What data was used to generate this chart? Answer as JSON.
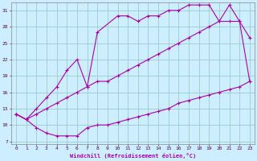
{
  "xlabel": "Windchill (Refroidissement éolien,°C)",
  "bg_color": "#cceeff",
  "line_color": "#aa00aa",
  "grid_color": "#99cccc",
  "xlim": [
    -0.5,
    23.5
  ],
  "ylim": [
    6.5,
    32.5
  ],
  "xticks": [
    0,
    1,
    2,
    3,
    4,
    5,
    6,
    7,
    8,
    9,
    10,
    11,
    12,
    13,
    14,
    15,
    16,
    17,
    18,
    19,
    20,
    21,
    22,
    23
  ],
  "yticks": [
    7,
    10,
    13,
    16,
    19,
    22,
    25,
    28,
    31
  ],
  "curve_upper": {
    "x": [
      0,
      1,
      2,
      3,
      4,
      5,
      6,
      7,
      8,
      10,
      11,
      12,
      13,
      14,
      15,
      16,
      17,
      18,
      19,
      20,
      21,
      22,
      23
    ],
    "y": [
      12,
      11,
      13,
      15,
      17,
      20,
      22,
      17,
      27,
      30,
      30,
      29,
      30,
      30,
      31,
      31,
      32,
      32,
      32,
      29,
      32,
      29,
      26
    ]
  },
  "curve_mid": {
    "x": [
      0,
      1,
      2,
      3,
      4,
      5,
      6,
      7,
      8,
      9,
      10,
      11,
      12,
      13,
      14,
      15,
      16,
      17,
      18,
      19,
      20,
      21,
      22,
      23
    ],
    "y": [
      12,
      11,
      12,
      13,
      14,
      15,
      16,
      17,
      18,
      18,
      19,
      20,
      21,
      22,
      23,
      24,
      25,
      26,
      27,
      28,
      29,
      29,
      29,
      18
    ]
  },
  "curve_lower": {
    "x": [
      0,
      1,
      2,
      3,
      4,
      5,
      6,
      7,
      8,
      9,
      10,
      11,
      12,
      13,
      14,
      15,
      16,
      17,
      18,
      19,
      20,
      21,
      22,
      23
    ],
    "y": [
      12,
      11,
      9.5,
      8.5,
      8,
      8,
      8,
      9.5,
      10,
      10,
      10.5,
      11,
      11.5,
      12,
      12.5,
      13,
      14,
      14.5,
      15,
      15.5,
      16,
      16.5,
      17,
      18
    ]
  }
}
